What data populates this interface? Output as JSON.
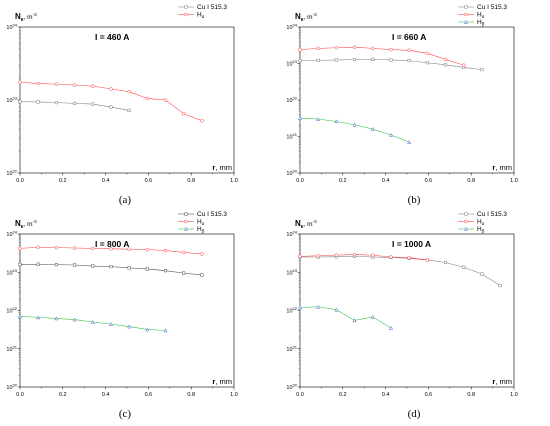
{
  "chart_data": [
    {
      "type": "line",
      "panel_label": "(a)",
      "title": "I = 460 A",
      "ylabel": "N",
      "ylabel_sub": "e",
      "ylabel_unit": ", m",
      "ylabel_sup": "-3",
      "xlabel_bold": "r",
      "xlabel_rest": ", mm",
      "xlim": [
        0,
        1.0
      ],
      "ylim_exp": [
        22,
        24
      ],
      "y_log": true,
      "x_ticks": [
        "0.0",
        "0.2",
        "0.4",
        "0.6",
        "0.8",
        "1.0"
      ],
      "y_ticks": [
        {
          "base": "10",
          "exp": "24"
        },
        {
          "base": "10",
          "exp": "23"
        },
        {
          "base": "10",
          "exp": "22"
        }
      ],
      "legend_position": "top-right",
      "series": [
        {
          "name": "Cu I 515.3",
          "sub": "",
          "color": "#808080",
          "marker": "square",
          "x": [
            0.0,
            0.085,
            0.17,
            0.255,
            0.34,
            0.425,
            0.51
          ],
          "y": [
            9.5e+22,
            9.4e+22,
            9.2e+22,
            9e+22,
            8.8e+22,
            8e+22,
            7.2e+22
          ]
        },
        {
          "name": "H",
          "sub": "α",
          "color": "#ff4040",
          "marker": "circle",
          "x": [
            0.0,
            0.085,
            0.17,
            0.255,
            0.34,
            0.425,
            0.51,
            0.595,
            0.68,
            0.765,
            0.85
          ],
          "y": [
            1.75e+23,
            1.68e+23,
            1.65e+23,
            1.6e+23,
            1.55e+23,
            1.42e+23,
            1.3e+23,
            1.05e+23,
            1e+23,
            6.5e+22,
            5.2e+22
          ]
        }
      ]
    },
    {
      "type": "line",
      "panel_label": "(b)",
      "title": "I = 660 A",
      "ylabel": "N",
      "ylabel_sub": "e",
      "ylabel_unit": ", m",
      "ylabel_sup": "-3",
      "xlabel_bold": "r",
      "xlabel_rest": ", mm",
      "xlim": [
        0,
        1.0
      ],
      "ylim_exp": [
        20,
        24
      ],
      "y_log": true,
      "x_ticks": [
        "0.0",
        "0.2",
        "0.4",
        "0.6",
        "0.8",
        "1.0"
      ],
      "y_ticks": [
        {
          "base": "10",
          "exp": "24"
        },
        {
          "base": "10",
          "exp": "23"
        },
        {
          "base": "10",
          "exp": "22"
        },
        {
          "base": "10",
          "exp": "21"
        },
        {
          "base": "10",
          "exp": "20"
        }
      ],
      "legend_position": "top-right",
      "series": [
        {
          "name": "Cu I 515.3",
          "sub": "",
          "color": "#808080",
          "marker": "square",
          "x": [
            0.0,
            0.085,
            0.17,
            0.255,
            0.34,
            0.425,
            0.51,
            0.595,
            0.68,
            0.765,
            0.85
          ],
          "y": [
            1.2e+23,
            1.22e+23,
            1.25e+23,
            1.28e+23,
            1.3e+23,
            1.25e+23,
            1.2e+23,
            1.05e+23,
            9.2e+22,
            7.8e+22,
            6.8e+22
          ]
        },
        {
          "name": "H",
          "sub": "α",
          "color": "#ff4040",
          "marker": "circle",
          "x": [
            0.0,
            0.085,
            0.17,
            0.255,
            0.34,
            0.425,
            0.51,
            0.595,
            0.68,
            0.765
          ],
          "y": [
            2.4e+23,
            2.6e+23,
            2.7e+23,
            2.8e+23,
            2.6e+23,
            2.4e+23,
            2.3e+23,
            1.9e+23,
            1.3e+23,
            9e+22
          ]
        },
        {
          "name": "H",
          "sub": "β",
          "color": "#3a5fd0",
          "marker": "triangle",
          "x": [
            0.0,
            0.085,
            0.17,
            0.255,
            0.34,
            0.425,
            0.51
          ],
          "y": [
            3.2e+21,
            3e+21,
            2.6e+21,
            2.1e+21,
            1.6e+21,
            1.1e+21,
            7e+20
          ]
        }
      ]
    },
    {
      "type": "line",
      "panel_label": "(c)",
      "title": "I = 800 A",
      "ylabel": "N",
      "ylabel_sub": "e",
      "ylabel_unit": ", m",
      "ylabel_sup": "-3",
      "xlabel_bold": "r",
      "xlabel_rest": ", mm",
      "xlim": [
        0,
        1.0
      ],
      "ylim_exp": [
        20,
        24
      ],
      "y_log": true,
      "x_ticks": [
        "0.0",
        "0.2",
        "0.4",
        "0.6",
        "0.8",
        "1.0"
      ],
      "y_ticks": [
        {
          "base": "10",
          "exp": "24"
        },
        {
          "base": "10",
          "exp": "23"
        },
        {
          "base": "10",
          "exp": "22"
        },
        {
          "base": "10",
          "exp": "21"
        },
        {
          "base": "10",
          "exp": "20"
        }
      ],
      "legend_position": "top-right",
      "series": [
        {
          "name": "Cu I 515.3",
          "sub": "",
          "color": "#505050",
          "marker": "square",
          "x": [
            0.0,
            0.085,
            0.17,
            0.255,
            0.34,
            0.425,
            0.51,
            0.595,
            0.68,
            0.765,
            0.85
          ],
          "y": [
            1.6e+23,
            1.62e+23,
            1.58e+23,
            1.55e+23,
            1.45e+23,
            1.4e+23,
            1.3e+23,
            1.22e+23,
            1.1e+23,
            9.5e+22,
            8.5e+22
          ]
        },
        {
          "name": "H",
          "sub": "α",
          "color": "#ff4040",
          "marker": "circle",
          "x": [
            0.0,
            0.085,
            0.17,
            0.255,
            0.34,
            0.425,
            0.51,
            0.595,
            0.68,
            0.765,
            0.85
          ],
          "y": [
            4.2e+23,
            4.5e+23,
            4.4e+23,
            4.3e+23,
            4.2e+23,
            4.1e+23,
            4e+23,
            3.9e+23,
            3.7e+23,
            3.3e+23,
            3e+23
          ]
        },
        {
          "name": "H",
          "sub": "β",
          "color": "#3a5fd0",
          "marker": "triangle",
          "x": [
            0.0,
            0.085,
            0.17,
            0.255,
            0.34,
            0.425,
            0.51,
            0.595,
            0.68
          ],
          "y": [
            7e+21,
            6.6e+21,
            6.2e+21,
            5.8e+21,
            5e+21,
            4.4e+21,
            3.8e+21,
            3.2e+21,
            3e+21
          ]
        }
      ]
    },
    {
      "type": "line",
      "panel_label": "(d)",
      "title": "I = 1000 A",
      "ylabel": "N",
      "ylabel_sub": "e",
      "ylabel_unit": ", m",
      "ylabel_sup": "-3",
      "xlabel_bold": "r",
      "xlabel_rest": ", mm",
      "xlim": [
        0,
        1.0
      ],
      "ylim_exp": [
        20,
        24
      ],
      "y_log": true,
      "x_ticks": [
        "0.0",
        "0.2",
        "0.4",
        "0.6",
        "0.8",
        "1.0"
      ],
      "y_ticks": [
        {
          "base": "10",
          "exp": "24"
        },
        {
          "base": "10",
          "exp": "23"
        },
        {
          "base": "10",
          "exp": "22"
        },
        {
          "base": "10",
          "exp": "21"
        },
        {
          "base": "10",
          "exp": "20"
        }
      ],
      "legend_position": "top-right",
      "series": [
        {
          "name": "Cu I 515.3",
          "sub": "",
          "color": "#808080",
          "marker": "square",
          "x": [
            0.0,
            0.085,
            0.17,
            0.255,
            0.34,
            0.425,
            0.51,
            0.595,
            0.68,
            0.765,
            0.85,
            0.935
          ],
          "y": [
            2.5e+23,
            2.5e+23,
            2.55e+23,
            2.6e+23,
            2.5e+23,
            2.45e+23,
            2.3e+23,
            2.1e+23,
            1.8e+23,
            1.35e+23,
            9e+22,
            4.5e+22
          ]
        },
        {
          "name": "H",
          "sub": "α",
          "color": "#ff4040",
          "marker": "circle",
          "x": [
            0.0,
            0.085,
            0.17,
            0.255,
            0.34,
            0.425,
            0.51,
            0.595
          ],
          "y": [
            2.6e+23,
            2.7e+23,
            2.8e+23,
            2.9e+23,
            2.8e+23,
            2.5e+23,
            2.4e+23,
            2.1e+23
          ]
        },
        {
          "name": "H",
          "sub": "β",
          "color": "#3a5fd0",
          "marker": "triangle",
          "x": [
            0.0,
            0.085,
            0.17,
            0.255,
            0.34,
            0.425
          ],
          "y": [
            1.2e+22,
            1.25e+22,
            1.05e+22,
            5.5e+21,
            6.8e+21,
            3.5e+21
          ]
        }
      ]
    }
  ]
}
